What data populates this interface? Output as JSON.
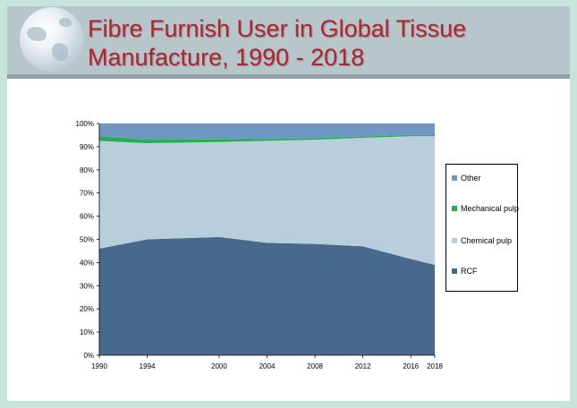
{
  "slide": {
    "title_lines": [
      "Fibre Furnish User in Global Tissue",
      "Manufacture, 1990 - 2018"
    ]
  },
  "chart_data": {
    "type": "area",
    "stacked": true,
    "x": [
      1990,
      1994,
      2000,
      2004,
      2008,
      2012,
      2016,
      2018
    ],
    "series": [
      {
        "name": "RCF",
        "color": "#46698d",
        "values": [
          46,
          50,
          51,
          48.5,
          48,
          47,
          41.5,
          39
        ]
      },
      {
        "name": "Chemical pulp",
        "color": "#b9cedd",
        "values": [
          46.5,
          41.5,
          41,
          44,
          45,
          46.8,
          53,
          55.5
        ]
      },
      {
        "name": "Mechanical pulp",
        "color": "#22b14c",
        "values": [
          2,
          1.5,
          1.2,
          0.8,
          0.7,
          0.6,
          0.6,
          0.5
        ]
      },
      {
        "name": "Other",
        "color": "#6e97c3",
        "values": [
          5.5,
          7,
          6.8,
          6.7,
          6.3,
          5.6,
          4.9,
          5
        ]
      }
    ],
    "legend_order": [
      "Other",
      "Mechanical pulp",
      "Chemical pulp",
      "RCF"
    ],
    "y_ticks": [
      "0%",
      "10%",
      "20%",
      "30%",
      "40%",
      "50%",
      "60%",
      "70%",
      "80%",
      "90%",
      "100%"
    ],
    "x_ticks": [
      "1990",
      "1994",
      "2000",
      "2004",
      "2008",
      "2012",
      "2016",
      "2018"
    ],
    "ylim": [
      0,
      100
    ],
    "legend_position": "right"
  }
}
